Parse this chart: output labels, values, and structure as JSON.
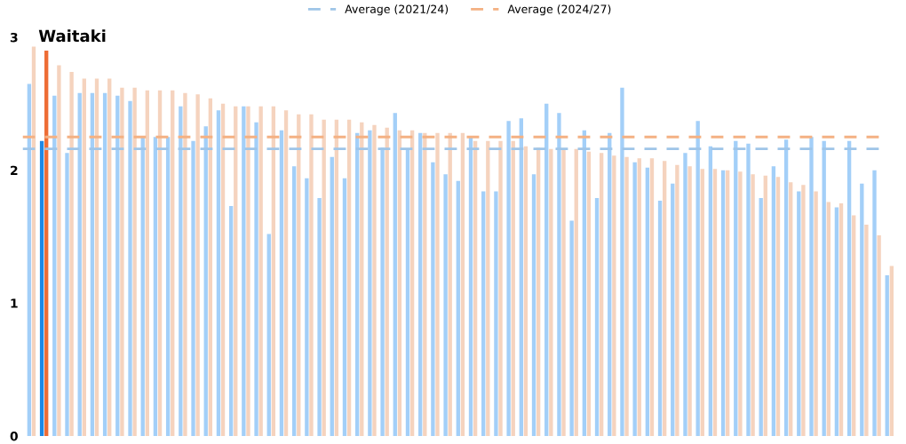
{
  "chart_data": {
    "type": "bar",
    "annotations": [
      "Waitaki"
    ],
    "categories": [
      null,
      null,
      null,
      null,
      null,
      null,
      null,
      null,
      null,
      null,
      null,
      null,
      null,
      null,
      null,
      null,
      null,
      null,
      null,
      null,
      null,
      null,
      null,
      null,
      null,
      null,
      null,
      null,
      null,
      null,
      null,
      null,
      null,
      null,
      null,
      null,
      null,
      null,
      null,
      null,
      null,
      null,
      null,
      null,
      null,
      null,
      null,
      null,
      null,
      null,
      null,
      null,
      null,
      null,
      null,
      null,
      null,
      null,
      null,
      null,
      null,
      null,
      null,
      null,
      null,
      null,
      null,
      null,
      null
    ],
    "series": [
      {
        "colors": [
          "#a3cff8",
          "#1e88e5",
          "#a3cff8",
          "#a3cff8",
          "#a3cff8",
          "#a3cff8",
          "#a3cff8",
          "#a3cff8",
          "#a3cff8",
          "#a3cff8",
          "#a3cff8",
          "#a3cff8",
          "#a3cff8",
          "#a3cff8",
          "#a3cff8",
          "#a3cff8",
          "#a3cff8",
          "#a3cff8",
          "#a3cff8",
          "#a3cff8",
          "#a3cff8",
          "#a3cff8",
          "#a3cff8",
          "#a3cff8",
          "#a3cff8",
          "#a3cff8",
          "#a3cff8",
          "#a3cff8",
          "#a3cff8",
          "#a3cff8",
          "#a3cff8",
          "#a3cff8",
          "#a3cff8",
          "#a3cff8",
          "#a3cff8",
          "#a3cff8",
          "#a3cff8",
          "#a3cff8",
          "#a3cff8",
          "#a3cff8",
          "#a3cff8",
          "#a3cff8",
          "#a3cff8",
          "#a3cff8",
          "#a3cff8",
          "#a3cff8",
          "#a3cff8",
          "#a3cff8",
          "#a3cff8",
          "#a3cff8",
          "#a3cff8",
          "#a3cff8",
          "#a3cff8",
          "#a3cff8",
          "#a3cff8",
          "#a3cff8",
          "#a3cff8",
          "#a3cff8",
          "#a3cff8",
          "#a3cff8",
          "#a3cff8",
          "#a3cff8",
          "#a3cff8",
          "#a3cff8",
          "#a3cff8",
          "#a3cff8",
          "#a3cff8",
          "#a3cff8",
          "#a3cff8"
        ],
        "values": [
          2.65,
          2.22,
          2.56,
          2.13,
          2.58,
          2.58,
          2.58,
          2.56,
          2.52,
          2.25,
          2.25,
          2.25,
          2.48,
          2.22,
          2.33,
          2.45,
          1.73,
          2.48,
          2.36,
          1.52,
          2.3,
          2.03,
          1.94,
          1.79,
          2.1,
          1.94,
          2.28,
          2.3,
          2.17,
          2.43,
          2.16,
          2.28,
          2.06,
          1.97,
          1.92,
          2.25,
          1.84,
          1.84,
          2.37,
          2.39,
          1.97,
          2.5,
          2.43,
          1.62,
          2.3,
          1.79,
          2.28,
          2.62,
          2.06,
          2.02,
          1.77,
          1.9,
          2.13,
          2.37,
          2.18,
          2.0,
          2.22,
          2.2,
          1.79,
          2.03,
          2.23,
          1.84,
          2.25,
          2.22,
          1.72,
          2.22,
          1.9,
          2.0,
          1.21
        ]
      },
      {
        "colors": [
          "#f5d3be",
          "#ee6c35",
          "#f5d3be",
          "#f5d3be",
          "#f5d3be",
          "#f5d3be",
          "#f5d3be",
          "#f5d3be",
          "#f5d3be",
          "#f5d3be",
          "#f5d3be",
          "#f5d3be",
          "#f5d3be",
          "#f5d3be",
          "#f5d3be",
          "#f5d3be",
          "#f5d3be",
          "#f5d3be",
          "#f5d3be",
          "#f5d3be",
          "#f5d3be",
          "#f5d3be",
          "#f5d3be",
          "#f5d3be",
          "#f5d3be",
          "#f5d3be",
          "#f5d3be",
          "#f5d3be",
          "#f5d3be",
          "#f5d3be",
          "#f5d3be",
          "#f5d3be",
          "#f5d3be",
          "#f5d3be",
          "#f5d3be",
          "#f5d3be",
          "#f5d3be",
          "#f5d3be",
          "#f5d3be",
          "#f5d3be",
          "#f5d3be",
          "#f5d3be",
          "#f5d3be",
          "#f5d3be",
          "#f5d3be",
          "#f5d3be",
          "#f5d3be",
          "#f5d3be",
          "#f5d3be",
          "#f5d3be",
          "#f5d3be",
          "#f5d3be",
          "#f5d3be",
          "#f5d3be",
          "#f5d3be",
          "#f5d3be",
          "#f5d3be",
          "#f5d3be",
          "#f5d3be",
          "#f5d3be",
          "#f5d3be",
          "#f5d3be",
          "#f5d3be",
          "#f5d3be",
          "#f5d3be",
          "#f5d3be",
          "#f5d3be",
          "#f5d3be",
          "#f5d3be"
        ],
        "values": [
          2.93,
          2.9,
          2.79,
          2.74,
          2.69,
          2.69,
          2.69,
          2.62,
          2.62,
          2.6,
          2.6,
          2.6,
          2.58,
          2.57,
          2.54,
          2.5,
          2.48,
          2.48,
          2.48,
          2.48,
          2.45,
          2.42,
          2.42,
          2.38,
          2.38,
          2.38,
          2.36,
          2.34,
          2.32,
          2.3,
          2.3,
          2.28,
          2.28,
          2.28,
          2.28,
          2.22,
          2.22,
          2.22,
          2.22,
          2.18,
          2.17,
          2.16,
          2.16,
          2.16,
          2.14,
          2.13,
          2.11,
          2.1,
          2.09,
          2.09,
          2.07,
          2.04,
          2.03,
          2.01,
          2.01,
          2.0,
          1.99,
          1.97,
          1.96,
          1.95,
          1.91,
          1.89,
          1.84,
          1.76,
          1.75,
          1.66,
          1.59,
          1.51,
          1.28
        ]
      }
    ],
    "ref_lines": [
      {
        "axis": "y",
        "value": 2.16,
        "label": "Average (2021/24)",
        "color": "#9fc5e8",
        "line_style": "dashed"
      },
      {
        "axis": "y",
        "value": 2.25,
        "label": "Average (2024/27)",
        "color": "#f4b183",
        "line_style": "dashed"
      }
    ],
    "ylim": [
      0,
      3
    ],
    "yticks": [
      0,
      1,
      2,
      3
    ],
    "tick_labels": "y",
    "grid": false,
    "legend": "top"
  }
}
